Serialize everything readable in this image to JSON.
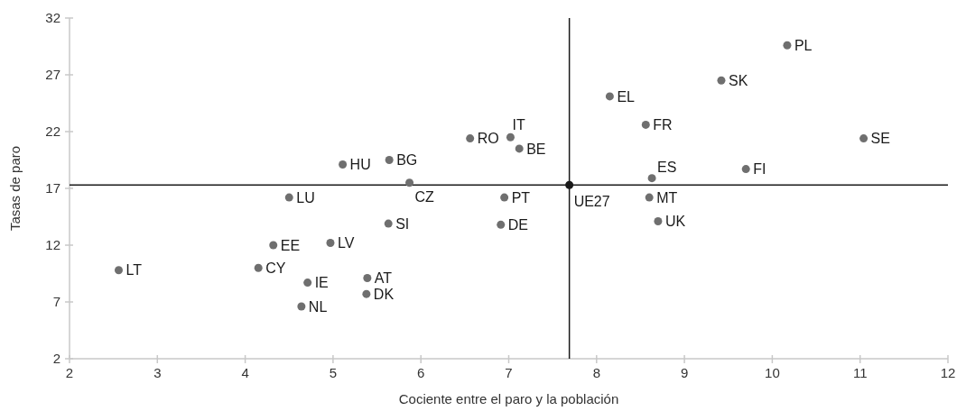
{
  "chart_data": {
    "type": "scatter",
    "xlabel": "Cociente entre el paro y la población",
    "ylabel": "Tasas de paro",
    "xlim": [
      2,
      12
    ],
    "xticks": [
      2,
      3,
      4,
      5,
      6,
      7,
      8,
      9,
      10,
      11,
      12
    ],
    "ylim": [
      2,
      32
    ],
    "yticks": [
      2,
      7,
      12,
      17,
      22,
      27,
      32
    ],
    "grid": false,
    "marker": "circle",
    "series": [
      {
        "color": "#6f6f6f",
        "x": [
          2.56,
          4.15,
          4.32,
          4.97,
          4.71,
          4.64,
          4.5,
          5.11,
          5.39,
          5.38,
          5.64,
          5.87,
          5.63,
          6.56,
          7.02,
          7.12,
          6.95,
          6.91,
          8.63,
          8.6,
          8.7,
          8.56,
          10.17,
          9.42,
          8.15,
          11.04,
          9.7
        ],
        "values": [
          9.8,
          10,
          12,
          12.2,
          8.7,
          6.6,
          16.2,
          19.1,
          9.1,
          7.7,
          19.5,
          17.5,
          13.9,
          21.4,
          21.5,
          20.5,
          16.2,
          13.8,
          17.9,
          16.2,
          14.1,
          22.6,
          29.6,
          26.5,
          25.1,
          21.4,
          18.7
        ],
        "value_labels": [
          "LT",
          "CY",
          "EE",
          "LV",
          "IE",
          "NL",
          "LU",
          "HU",
          "AT",
          "DK",
          "BG",
          "CZ",
          "SI",
          "RO",
          "IT",
          "BE",
          "PT",
          "DE",
          "ES",
          "MT",
          "UK",
          "FR",
          "PL",
          "SK",
          "EL",
          "SE",
          "FI"
        ]
      },
      {
        "color": "#1a1a1a",
        "x": [
          7.69
        ],
        "values": [
          17.3
        ],
        "value_labels": [
          "UE27"
        ]
      }
    ],
    "ref_lines": [
      {
        "axis": "x",
        "value": 7.69,
        "color": "#1a1a1a"
      },
      {
        "axis": "y",
        "value": 17.3,
        "color": "#1a1a1a"
      }
    ]
  }
}
